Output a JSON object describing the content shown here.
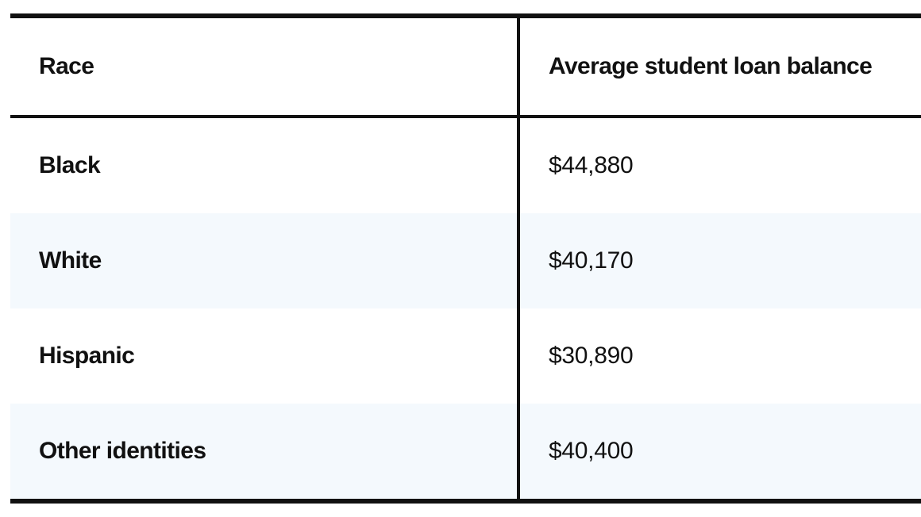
{
  "table": {
    "headers": {
      "race": "Race",
      "balance": "Average student loan balance"
    },
    "rows": [
      {
        "race": "Black",
        "balance": "$44,880"
      },
      {
        "race": "White",
        "balance": "$40,170"
      },
      {
        "race": "Hispanic",
        "balance": "$30,890"
      },
      {
        "race": "Other identities",
        "balance": "$40,400"
      }
    ]
  },
  "colors": {
    "text": "#111111",
    "border": "#111111",
    "stripe": "#f4f9fd",
    "background": "#ffffff"
  }
}
